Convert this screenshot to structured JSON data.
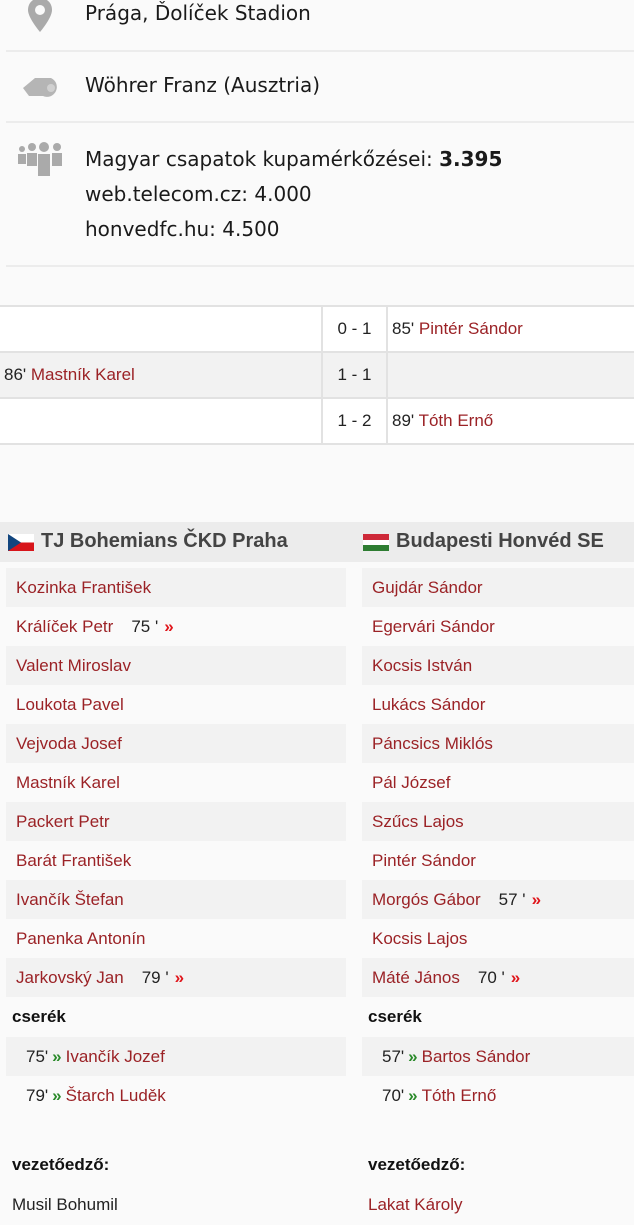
{
  "info": {
    "venue": "Prága, Ďolíček Stadion",
    "referee": "Wöhrer Franz (Ausztria)",
    "attendance_label": "Magyar csapatok kupamérkőzései:",
    "attendance_value": "3.395",
    "attendance_alt1": "web.telecom.cz: 4.000",
    "attendance_alt2": "honvedfc.hu: 4.500",
    "icons": [
      "map-pin-icon",
      "whistle-icon",
      "crowd-icon"
    ]
  },
  "goals": [
    {
      "home_min": "",
      "home_player": "",
      "score": "0 - 1",
      "away_min": "85'",
      "away_player": "Pintér Sándor"
    },
    {
      "home_min": "86'",
      "home_player": "Mastník Karel",
      "score": "1 - 1",
      "away_min": "",
      "away_player": ""
    },
    {
      "home_min": "",
      "home_player": "",
      "score": "1 - 2",
      "away_min": "89'",
      "away_player": "Tóth Ernő"
    }
  ],
  "home": {
    "name": "TJ Bohemians ČKD Praha",
    "flag": "czech-flag",
    "players": [
      {
        "name": "Kozinka František"
      },
      {
        "name": "Králíček Petr",
        "sub_min": "75 '",
        "sub_mark": "»"
      },
      {
        "name": "Valent Miroslav"
      },
      {
        "name": "Loukota Pavel"
      },
      {
        "name": "Vejvoda Josef"
      },
      {
        "name": "Mastník Karel"
      },
      {
        "name": "Packert Petr"
      },
      {
        "name": "Barát František"
      },
      {
        "name": "Ivančík Štefan"
      },
      {
        "name": "Panenka Antonín"
      },
      {
        "name": "Jarkovský Jan",
        "sub_min": "79 '",
        "sub_mark": "»"
      }
    ],
    "subs_label": "cserék",
    "subs": [
      {
        "min": "75'",
        "mark": "»",
        "name": "Ivančík Jozef"
      },
      {
        "min": "79'",
        "mark": "»",
        "name": "Štarch Luděk"
      }
    ],
    "coach_label": "vezetőedző:",
    "coach": "Musil Bohumil"
  },
  "away": {
    "name": "Budapesti Honvéd SE",
    "flag": "hungarian-flag",
    "players": [
      {
        "name": "Gujdár Sándor"
      },
      {
        "name": "Egervári Sándor"
      },
      {
        "name": "Kocsis István"
      },
      {
        "name": "Lukács Sándor"
      },
      {
        "name": "Páncsics Miklós"
      },
      {
        "name": "Pál József"
      },
      {
        "name": "Szűcs Lajos"
      },
      {
        "name": "Pintér Sándor"
      },
      {
        "name": "Morgós Gábor",
        "sub_min": "57 '",
        "sub_mark": "»"
      },
      {
        "name": "Kocsis Lajos"
      },
      {
        "name": "Máté János",
        "sub_min": "70 '",
        "sub_mark": "»"
      }
    ],
    "subs_label": "cserék",
    "subs": [
      {
        "min": "57'",
        "mark": "»",
        "name": "Bartos Sándor"
      },
      {
        "min": "70'",
        "mark": "»",
        "name": "Tóth Ernő"
      }
    ],
    "coach_label": "vezetőedző:",
    "coach": "Lakat Károly"
  },
  "colors": {
    "link": "#9b2226",
    "sub_out": "#e0151b",
    "sub_in": "#2a8a2a"
  }
}
